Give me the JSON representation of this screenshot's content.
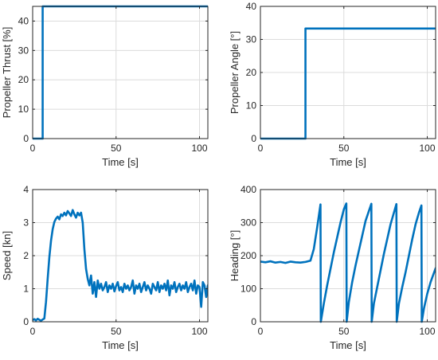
{
  "chart_data": [
    {
      "type": "line",
      "xlabel": "Time [s]",
      "ylabel": "Propeller Thrust [%]",
      "xlim": [
        0,
        105
      ],
      "ylim": [
        0,
        45
      ],
      "xticks": [
        0,
        50,
        100
      ],
      "yticks": [
        0,
        10,
        20,
        30,
        40
      ],
      "grid": true,
      "color": "#0072BD",
      "series": [
        {
          "x": [
            0,
            6,
            6,
            105
          ],
          "y": [
            0,
            0,
            45,
            45
          ]
        }
      ]
    },
    {
      "type": "line",
      "xlabel": "Time [s]",
      "ylabel": "Propeller Angle [°]",
      "xlim": [
        0,
        105
      ],
      "ylim": [
        0,
        40
      ],
      "xticks": [
        0,
        50,
        100
      ],
      "yticks": [
        0,
        10,
        20,
        30,
        40
      ],
      "grid": true,
      "color": "#0072BD",
      "series": [
        {
          "x": [
            0,
            27,
            27,
            105
          ],
          "y": [
            0,
            0,
            33.3,
            33.3
          ]
        }
      ]
    },
    {
      "type": "line",
      "xlabel": "Time [s]",
      "ylabel": "Speed [kn]",
      "xlim": [
        0,
        105
      ],
      "ylim": [
        0,
        4
      ],
      "xticks": [
        0,
        50,
        100
      ],
      "yticks": [
        0,
        1,
        2,
        3,
        4
      ],
      "grid": true,
      "color": "#0072BD",
      "series": [
        {
          "x": [
            0,
            1,
            2,
            3,
            4,
            5,
            6,
            7,
            8,
            9,
            10,
            11,
            12,
            13,
            14,
            15,
            16,
            17,
            18,
            19,
            20,
            21,
            22,
            23,
            24,
            25,
            26,
            27,
            28,
            29,
            30,
            31,
            32,
            33,
            34,
            35,
            36,
            37,
            38,
            39,
            40,
            41,
            42,
            43,
            44,
            45,
            46,
            47,
            48,
            49,
            50,
            51,
            52,
            53,
            54,
            55,
            56,
            57,
            58,
            59,
            60,
            61,
            62,
            63,
            64,
            65,
            66,
            67,
            68,
            69,
            70,
            71,
            72,
            73,
            74,
            75,
            76,
            77,
            78,
            79,
            80,
            81,
            82,
            83,
            84,
            85,
            86,
            87,
            88,
            89,
            90,
            91,
            92,
            93,
            94,
            95,
            96,
            97,
            98,
            99,
            100,
            101,
            102,
            103,
            104,
            105
          ],
          "y": [
            0.05,
            0.08,
            0.04,
            0.09,
            0.06,
            0.03,
            0.07,
            0.1,
            0.6,
            1.3,
            1.95,
            2.45,
            2.8,
            3.02,
            3.12,
            3.18,
            3.1,
            3.25,
            3.2,
            3.3,
            3.22,
            3.35,
            3.28,
            3.2,
            3.38,
            3.25,
            3.15,
            3.3,
            3.22,
            3.3,
            3.0,
            2.2,
            1.6,
            1.3,
            1.1,
            1.4,
            0.85,
            1.2,
            0.75,
            1.25,
            1.0,
            1.15,
            0.95,
            1.05,
            1.2,
            0.9,
            1.1,
            1.0,
            1.15,
            0.92,
            1.08,
            1.2,
            0.95,
            1.05,
            0.9,
            1.15,
            1.0,
            1.1,
            0.95,
            1.05,
            1.25,
            0.85,
            1.1,
            1.0,
            1.15,
            0.9,
            1.05,
            1.2,
            0.95,
            1.1,
            1.0,
            0.85,
            1.15,
            1.05,
            0.95,
            1.2,
            0.9,
            1.1,
            1.0,
            1.15,
            0.95,
            1.25,
            0.8,
            1.1,
            1.0,
            1.2,
            0.9,
            1.05,
            1.15,
            0.95,
            1.1,
            1.0,
            1.2,
            0.9,
            1.05,
            1.15,
            0.95,
            1.25,
            0.85,
            1.1,
            1.05,
            0.45,
            1.2,
            1.1,
            0.75,
            1.1
          ]
        }
      ]
    },
    {
      "type": "line",
      "xlabel": "Time [s]",
      "ylabel": "Heading [°]",
      "xlim": [
        0,
        105
      ],
      "ylim": [
        0,
        400
      ],
      "xticks": [
        0,
        50,
        100
      ],
      "yticks": [
        0,
        100,
        200,
        300,
        400
      ],
      "grid": true,
      "color": "#0072BD",
      "series": [
        {
          "x": [
            0,
            3,
            6,
            9,
            12,
            15,
            18,
            21,
            24,
            27,
            30,
            32,
            34,
            36,
            36.2,
            38,
            40,
            42,
            44,
            46,
            48,
            50,
            51.5,
            51.7,
            53,
            55,
            57,
            59,
            61,
            63,
            65,
            66.5,
            66.7,
            68,
            70,
            72,
            74,
            76,
            78,
            80,
            81.5,
            81.7,
            83,
            85,
            87,
            89,
            91,
            93,
            95,
            96.5,
            96.7,
            98,
            100,
            102,
            105
          ],
          "y": [
            182,
            180,
            183,
            179,
            181,
            178,
            182,
            180,
            179,
            181,
            185,
            220,
            285,
            355,
            0,
            55,
            110,
            160,
            210,
            255,
            300,
            340,
            358,
            0,
            60,
            120,
            170,
            215,
            260,
            305,
            335,
            357,
            0,
            55,
            105,
            155,
            205,
            250,
            295,
            330,
            356,
            0,
            55,
            105,
            150,
            200,
            250,
            295,
            330,
            352,
            0,
            40,
            85,
            120,
            162
          ]
        }
      ]
    }
  ]
}
